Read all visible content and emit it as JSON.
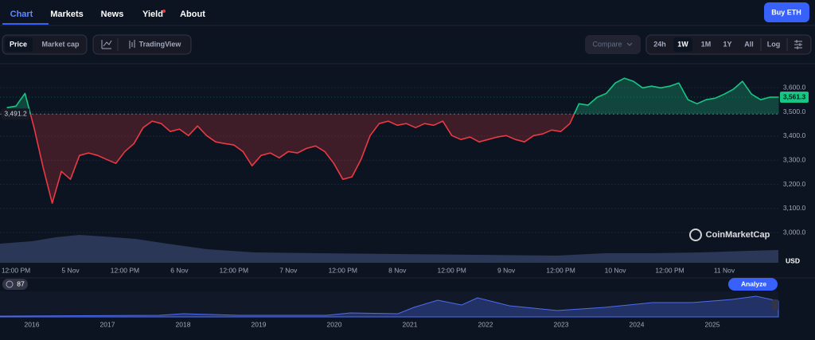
{
  "ui": {
    "tabs": [
      "Chart",
      "Markets",
      "News",
      "Yield",
      "About"
    ],
    "buy_button": "Buy ETH",
    "view_toggle": [
      "Price",
      "Market cap"
    ],
    "tradingview": "TradingView",
    "compare": "Compare",
    "ranges": [
      "24h",
      "1W",
      "1M",
      "1Y",
      "All"
    ],
    "log": "Log",
    "watermark": "CoinMarketCap",
    "badge": "87",
    "analyze": "Analyze",
    "years": [
      "2016",
      "2017",
      "2018",
      "2019",
      "2020",
      "2021",
      "2022",
      "2023",
      "2024",
      "2025"
    ]
  },
  "chart_data": {
    "type": "line",
    "y_label": "USD",
    "categories": [
      null,
      "12:00 PM",
      null,
      null,
      null,
      null,
      null,
      "5 Nov",
      null,
      null,
      null,
      null,
      null,
      "12:00 PM",
      null,
      null,
      null,
      null,
      null,
      "6 Nov",
      null,
      null,
      null,
      null,
      null,
      "12:00 PM",
      null,
      null,
      null,
      null,
      null,
      "7 Nov",
      null,
      null,
      null,
      null,
      null,
      "12:00 PM",
      null,
      null,
      null,
      null,
      null,
      "8 Nov",
      null,
      null,
      null,
      null,
      null,
      "12:00 PM",
      null,
      null,
      null,
      null,
      null,
      "9 Nov",
      null,
      null,
      null,
      null,
      null,
      "12:00 PM",
      null,
      null,
      null,
      null,
      null,
      "10 Nov",
      null,
      null,
      null,
      null,
      null,
      "12:00 PM",
      null,
      null,
      null,
      null,
      null,
      "11 Nov",
      null,
      null,
      null,
      null,
      null,
      null
    ],
    "values": [
      3518,
      3524,
      3577,
      3435,
      3270,
      3122,
      3254,
      3221,
      3320,
      3330,
      3320,
      3303,
      3287,
      3336,
      3369,
      3435,
      3462,
      3452,
      3419,
      3429,
      3402,
      3442,
      3402,
      3376,
      3369,
      3363,
      3336,
      3277,
      3320,
      3330,
      3310,
      3336,
      3330,
      3349,
      3359,
      3336,
      3287,
      3221,
      3231,
      3303,
      3402,
      3452,
      3462,
      3445,
      3452,
      3435,
      3452,
      3445,
      3462,
      3402,
      3386,
      3396,
      3376,
      3386,
      3396,
      3402,
      3386,
      3376,
      3402,
      3409,
      3425,
      3419,
      3452,
      3534,
      3528,
      3561,
      3577,
      3620,
      3640,
      3627,
      3600,
      3607,
      3600,
      3607,
      3620,
      3551,
      3534,
      3551,
      3557,
      3574,
      3594,
      3627,
      3574,
      3551,
      3561,
      3561.3
    ],
    "baseline": {
      "value": 3491.2,
      "label": "3,491.2"
    },
    "last_price": {
      "value": 3561.3,
      "label": "3,561.3"
    },
    "up_color": "#16c784",
    "down_color": "#ea3943",
    "ylim": [
      2875,
      3700
    ],
    "yticks": [
      {
        "value": 3000,
        "label": "3,000.0"
      },
      {
        "value": 3100,
        "label": "3,100.0"
      },
      {
        "value": 3200,
        "label": "3,200.0"
      },
      {
        "value": 3300,
        "label": "3,300.0"
      },
      {
        "value": 3400,
        "label": "3,400.0"
      },
      {
        "value": 3500,
        "label": "3,500.0"
      },
      {
        "value": 3600,
        "label": "3,600.0"
      }
    ],
    "grid": true
  }
}
